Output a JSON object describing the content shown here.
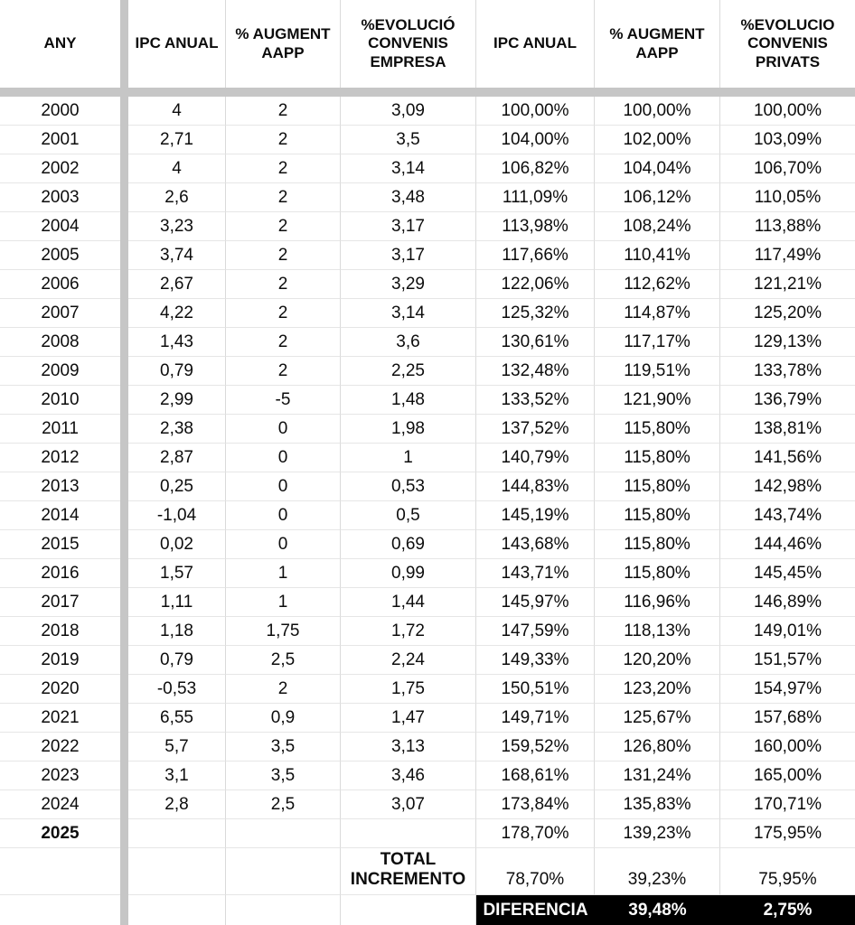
{
  "table": {
    "columns": [
      {
        "label": "ANY"
      },
      {
        "label": "IPC ANUAL"
      },
      {
        "label": "% AUGMENT AAPP"
      },
      {
        "label": "%EVOLUCIÓ CONVENIS EMPRESA"
      },
      {
        "label": "IPC ANUAL"
      },
      {
        "label": "% AUGMENT AAPP"
      },
      {
        "label": "%EVOLUCIO CONVENIS PRIVATS"
      }
    ],
    "rows": [
      {
        "year": "2000",
        "ipc_anual": "4",
        "augment_aapp": "2",
        "evolucio_empresa": "3,09",
        "ipc_anual_pct": "100,00%",
        "augment_aapp_pct": "100,00%",
        "evolucio_privats_pct": "100,00%"
      },
      {
        "year": "2001",
        "ipc_anual": "2,71",
        "augment_aapp": "2",
        "evolucio_empresa": "3,5",
        "ipc_anual_pct": "104,00%",
        "augment_aapp_pct": "102,00%",
        "evolucio_privats_pct": "103,09%"
      },
      {
        "year": "2002",
        "ipc_anual": "4",
        "augment_aapp": "2",
        "evolucio_empresa": "3,14",
        "ipc_anual_pct": "106,82%",
        "augment_aapp_pct": "104,04%",
        "evolucio_privats_pct": "106,70%"
      },
      {
        "year": "2003",
        "ipc_anual": "2,6",
        "augment_aapp": "2",
        "evolucio_empresa": "3,48",
        "ipc_anual_pct": "111,09%",
        "augment_aapp_pct": "106,12%",
        "evolucio_privats_pct": "110,05%"
      },
      {
        "year": "2004",
        "ipc_anual": "3,23",
        "augment_aapp": "2",
        "evolucio_empresa": "3,17",
        "ipc_anual_pct": "113,98%",
        "augment_aapp_pct": "108,24%",
        "evolucio_privats_pct": "113,88%"
      },
      {
        "year": "2005",
        "ipc_anual": "3,74",
        "augment_aapp": "2",
        "evolucio_empresa": "3,17",
        "ipc_anual_pct": "117,66%",
        "augment_aapp_pct": "110,41%",
        "evolucio_privats_pct": "117,49%"
      },
      {
        "year": "2006",
        "ipc_anual": "2,67",
        "augment_aapp": "2",
        "evolucio_empresa": "3,29",
        "ipc_anual_pct": "122,06%",
        "augment_aapp_pct": "112,62%",
        "evolucio_privats_pct": "121,21%"
      },
      {
        "year": "2007",
        "ipc_anual": "4,22",
        "augment_aapp": "2",
        "evolucio_empresa": "3,14",
        "ipc_anual_pct": "125,32%",
        "augment_aapp_pct": "114,87%",
        "evolucio_privats_pct": "125,20%"
      },
      {
        "year": "2008",
        "ipc_anual": "1,43",
        "augment_aapp": "2",
        "evolucio_empresa": "3,6",
        "ipc_anual_pct": "130,61%",
        "augment_aapp_pct": "117,17%",
        "evolucio_privats_pct": "129,13%"
      },
      {
        "year": "2009",
        "ipc_anual": "0,79",
        "augment_aapp": "2",
        "evolucio_empresa": "2,25",
        "ipc_anual_pct": "132,48%",
        "augment_aapp_pct": "119,51%",
        "evolucio_privats_pct": "133,78%"
      },
      {
        "year": "2010",
        "ipc_anual": "2,99",
        "augment_aapp": "-5",
        "evolucio_empresa": "1,48",
        "ipc_anual_pct": "133,52%",
        "augment_aapp_pct": "121,90%",
        "evolucio_privats_pct": "136,79%"
      },
      {
        "year": "2011",
        "ipc_anual": "2,38",
        "augment_aapp": "0",
        "evolucio_empresa": "1,98",
        "ipc_anual_pct": "137,52%",
        "augment_aapp_pct": "115,80%",
        "evolucio_privats_pct": "138,81%"
      },
      {
        "year": "2012",
        "ipc_anual": "2,87",
        "augment_aapp": "0",
        "evolucio_empresa": "1",
        "ipc_anual_pct": "140,79%",
        "augment_aapp_pct": "115,80%",
        "evolucio_privats_pct": "141,56%"
      },
      {
        "year": "2013",
        "ipc_anual": "0,25",
        "augment_aapp": "0",
        "evolucio_empresa": "0,53",
        "ipc_anual_pct": "144,83%",
        "augment_aapp_pct": "115,80%",
        "evolucio_privats_pct": "142,98%"
      },
      {
        "year": "2014",
        "ipc_anual": "-1,04",
        "augment_aapp": "0",
        "evolucio_empresa": "0,5",
        "ipc_anual_pct": "145,19%",
        "augment_aapp_pct": "115,80%",
        "evolucio_privats_pct": "143,74%"
      },
      {
        "year": "2015",
        "ipc_anual": "0,02",
        "augment_aapp": "0",
        "evolucio_empresa": "0,69",
        "ipc_anual_pct": "143,68%",
        "augment_aapp_pct": "115,80%",
        "evolucio_privats_pct": "144,46%"
      },
      {
        "year": "2016",
        "ipc_anual": "1,57",
        "augment_aapp": "1",
        "evolucio_empresa": "0,99",
        "ipc_anual_pct": "143,71%",
        "augment_aapp_pct": "115,80%",
        "evolucio_privats_pct": "145,45%"
      },
      {
        "year": "2017",
        "ipc_anual": "1,11",
        "augment_aapp": "1",
        "evolucio_empresa": "1,44",
        "ipc_anual_pct": "145,97%",
        "augment_aapp_pct": "116,96%",
        "evolucio_privats_pct": "146,89%"
      },
      {
        "year": "2018",
        "ipc_anual": "1,18",
        "augment_aapp": "1,75",
        "evolucio_empresa": "1,72",
        "ipc_anual_pct": "147,59%",
        "augment_aapp_pct": "118,13%",
        "evolucio_privats_pct": "149,01%"
      },
      {
        "year": "2019",
        "ipc_anual": "0,79",
        "augment_aapp": "2,5",
        "evolucio_empresa": "2,24",
        "ipc_anual_pct": "149,33%",
        "augment_aapp_pct": "120,20%",
        "evolucio_privats_pct": "151,57%"
      },
      {
        "year": "2020",
        "ipc_anual": "-0,53",
        "augment_aapp": "2",
        "evolucio_empresa": "1,75",
        "ipc_anual_pct": "150,51%",
        "augment_aapp_pct": "123,20%",
        "evolucio_privats_pct": "154,97%"
      },
      {
        "year": "2021",
        "ipc_anual": "6,55",
        "augment_aapp": "0,9",
        "evolucio_empresa": "1,47",
        "ipc_anual_pct": "149,71%",
        "augment_aapp_pct": "125,67%",
        "evolucio_privats_pct": "157,68%"
      },
      {
        "year": "2022",
        "ipc_anual": "5,7",
        "augment_aapp": "3,5",
        "evolucio_empresa": "3,13",
        "ipc_anual_pct": "159,52%",
        "augment_aapp_pct": "126,80%",
        "evolucio_privats_pct": "160,00%"
      },
      {
        "year": "2023",
        "ipc_anual": "3,1",
        "augment_aapp": "3,5",
        "evolucio_empresa": "3,46",
        "ipc_anual_pct": "168,61%",
        "augment_aapp_pct": "131,24%",
        "evolucio_privats_pct": "165,00%"
      },
      {
        "year": "2024",
        "ipc_anual": "2,8",
        "augment_aapp": "2,5",
        "evolucio_empresa": "3,07",
        "ipc_anual_pct": "173,84%",
        "augment_aapp_pct": "135,83%",
        "evolucio_privats_pct": "170,71%"
      },
      {
        "year": "2025",
        "ipc_anual": "",
        "augment_aapp": "",
        "evolucio_empresa": "",
        "ipc_anual_pct": "178,70%",
        "augment_aapp_pct": "139,23%",
        "evolucio_privats_pct": "175,95%"
      }
    ],
    "total_row": {
      "label": "TOTAL INCREMENTO",
      "ipc_anual_pct": "78,70%",
      "augment_aapp_pct": "39,23%",
      "evolucio_privats_pct": "75,95%"
    },
    "diferencia_row": {
      "label": "DIFERENCIA",
      "augment_aapp_pct": "39,48%",
      "evolucio_privats_pct": "2,75%"
    }
  },
  "colors": {
    "divider_gray": "#c6c6c6",
    "grid_line": "#e6e6e6",
    "highlight_bg": "#000000",
    "highlight_text": "#ffffff"
  }
}
